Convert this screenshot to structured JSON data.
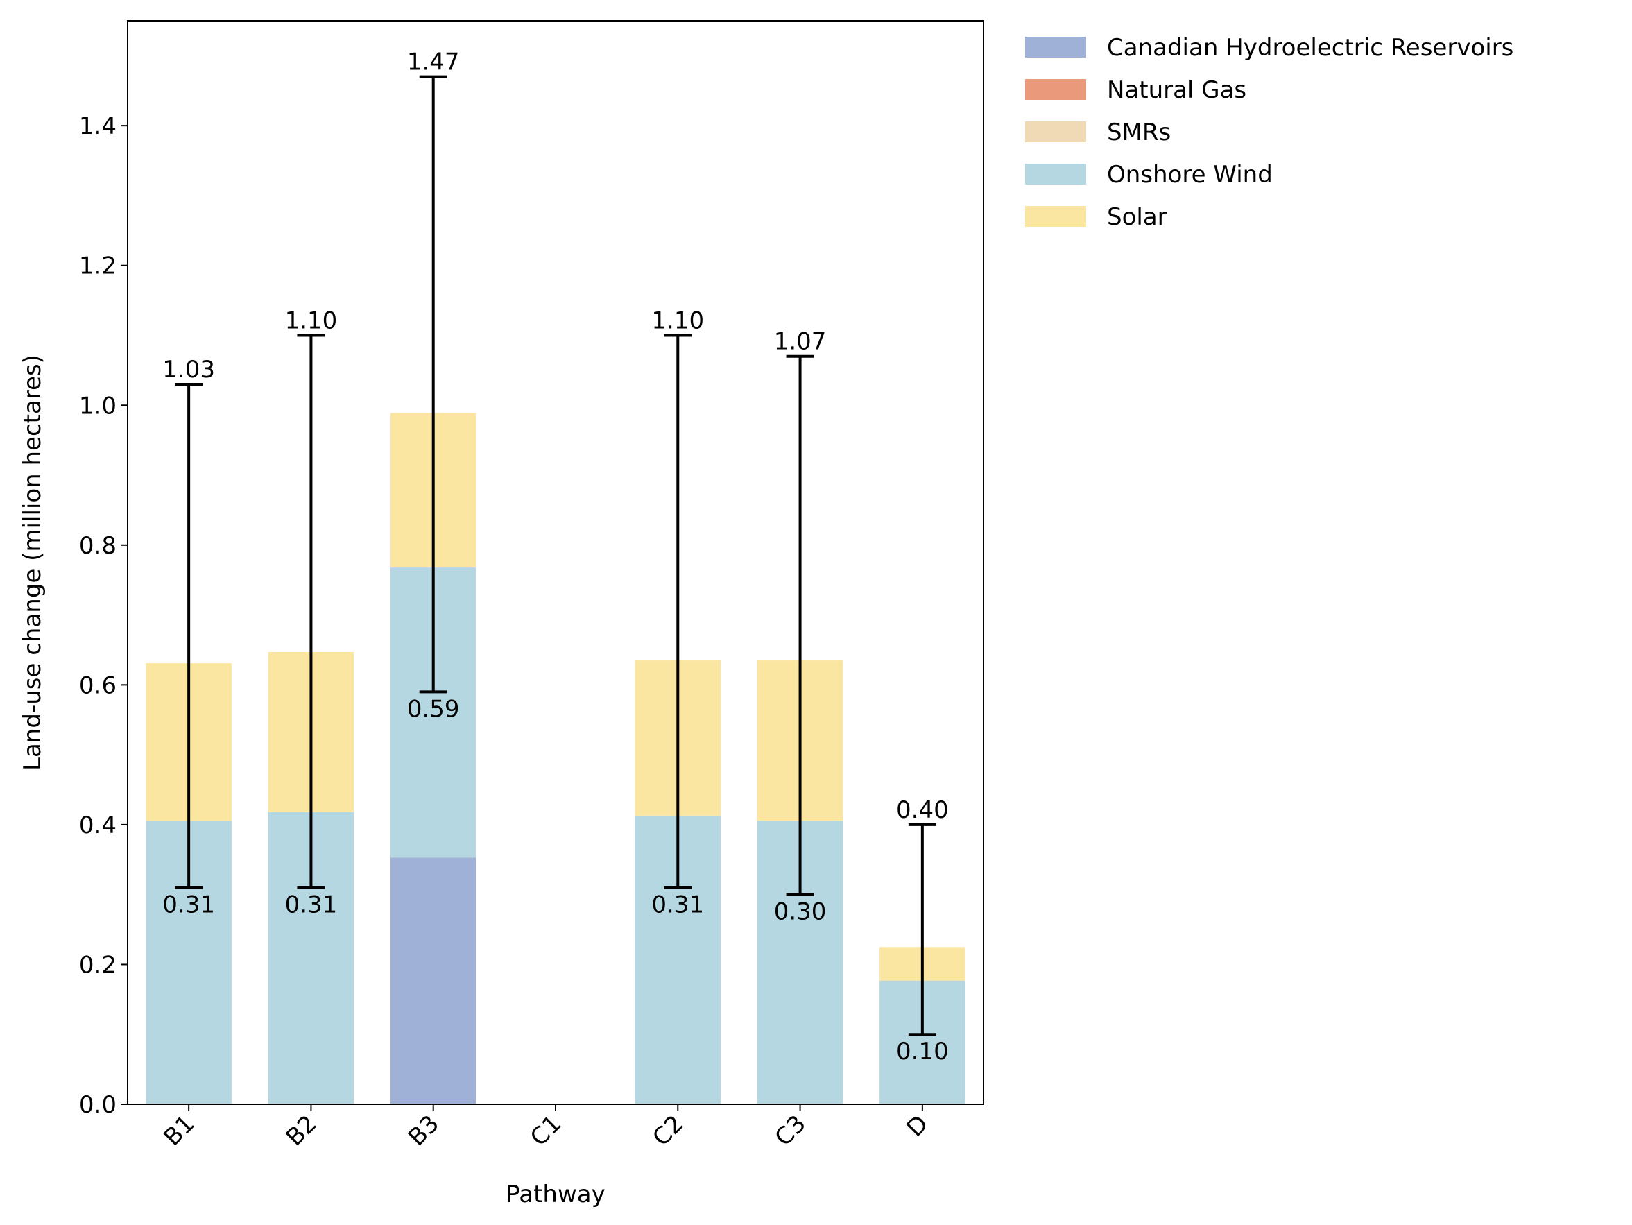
{
  "chart_data": {
    "type": "bar",
    "stacked": true,
    "categories": [
      "B1",
      "B2",
      "B3",
      "C1",
      "C2",
      "C3",
      "D"
    ],
    "series": [
      {
        "name": "Canadian Hydroelectric Reservoirs",
        "color": "#9FB1D6",
        "values": [
          0,
          0,
          0.353,
          0,
          0,
          0,
          0
        ]
      },
      {
        "name": "Natural Gas",
        "color": "#EA9A7B",
        "values": [
          0,
          0,
          0,
          0,
          0,
          0,
          0
        ]
      },
      {
        "name": "SMRs",
        "color": "#F0D9B5",
        "values": [
          0,
          0,
          0,
          0,
          0,
          0,
          0
        ]
      },
      {
        "name": "Onshore Wind",
        "color": "#B4D7E2",
        "values": [
          0.405,
          0.418,
          0.415,
          0,
          0.413,
          0.406,
          0.177
        ]
      },
      {
        "name": "Solar",
        "color": "#FAE6A1",
        "values": [
          0.226,
          0.229,
          0.221,
          0,
          0.222,
          0.229,
          0.048
        ]
      }
    ],
    "error_bars": {
      "lower": [
        0.31,
        0.31,
        0.59,
        null,
        0.31,
        0.3,
        0.1
      ],
      "upper": [
        1.03,
        1.1,
        1.47,
        null,
        1.1,
        1.07,
        0.4
      ],
      "lower_labels": [
        "0.31",
        "0.31",
        "0.59",
        "",
        "0.31",
        "0.30",
        "0.10"
      ],
      "upper_labels": [
        "1.03",
        "1.10",
        "1.47",
        "",
        "1.10",
        "1.07",
        "0.40"
      ]
    },
    "xlabel": "Pathway",
    "ylabel": "Land-use change (million hectares)",
    "ylim": [
      0,
      1.55
    ],
    "yticks": [
      0.0,
      0.2,
      0.4,
      0.6,
      0.8,
      1.0,
      1.2,
      1.4
    ],
    "ytick_labels": [
      "0.0",
      "0.2",
      "0.4",
      "0.6",
      "0.8",
      "1.0",
      "1.2",
      "1.4"
    ],
    "grid": false,
    "legend_position": "outside-right"
  }
}
